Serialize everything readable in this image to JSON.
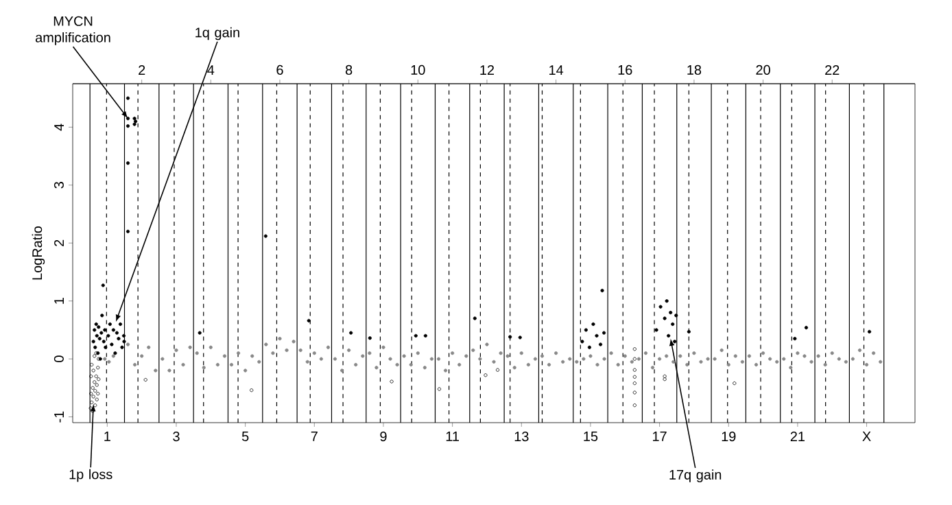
{
  "chart_data": {
    "type": "scatter",
    "ylabel": "LogRatio",
    "marker": "circle",
    "xlim": [
      0,
      24.4
    ],
    "ylim": [
      -1.1,
      4.75
    ],
    "yticks": [
      -1,
      0,
      1,
      2,
      3,
      4
    ],
    "xticks": [
      1,
      3,
      5,
      7,
      9,
      11,
      13,
      15,
      17,
      19,
      21,
      {
        "value": 23,
        "label": "X"
      }
    ],
    "x2lim": [
      0,
      24.4
    ],
    "x2ticks": [
      2,
      4,
      6,
      8,
      10,
      12,
      14,
      16,
      18,
      20,
      22
    ],
    "series": [
      {
        "color": "#888888",
        "x": [
          0.93,
          1.05,
          1.18,
          1.6,
          1.8,
          2,
          2.2,
          2.4,
          2.6,
          2.8,
          3,
          3.2,
          3.4,
          3.6,
          3.8,
          4,
          4.2,
          4.4,
          4.6,
          4.8,
          5,
          5.2,
          5.4,
          5.6,
          5.8,
          6,
          6.2,
          6.4,
          6.6,
          6.8,
          7,
          7.2,
          7.4,
          7.6,
          7.8,
          8,
          8.2,
          8.4,
          8.6,
          8.8,
          9,
          9.2,
          9.4,
          9.6,
          9.8,
          10,
          10.2,
          10.4,
          10.6,
          10.8,
          11,
          11.2,
          11.4,
          11.6,
          11.8,
          12,
          12.2,
          12.4,
          12.6,
          12.8,
          13,
          13.2,
          13.4,
          13.6,
          13.8,
          14,
          14.2,
          14.4,
          14.6,
          14.8,
          15,
          15.2,
          15.4,
          15.6,
          15.8,
          16,
          16.2,
          16.4,
          16.6,
          16.8,
          17,
          17.2,
          17.4,
          17.6,
          17.8,
          18,
          18.2,
          18.4,
          18.6,
          18.8,
          19,
          19.2,
          19.4,
          19.6,
          19.8,
          20,
          20.2,
          20.4,
          20.6,
          20.8,
          21,
          21.2,
          21.4,
          21.6,
          21.8,
          22,
          22.2,
          22.4,
          22.6,
          22.8,
          23,
          23.2,
          23.4
        ],
        "values": [
          0.0,
          -0.05,
          0.05,
          0.25,
          -0.1,
          0.05,
          0.2,
          -0.2,
          0.0,
          -0.2,
          0.15,
          -0.1,
          0.2,
          0.1,
          -0.15,
          0.2,
          -0.1,
          0.05,
          -0.1,
          0.1,
          -0.2,
          0.05,
          -0.05,
          0.25,
          0.1,
          0.35,
          0.15,
          0.3,
          0.15,
          -0.05,
          0.1,
          0.0,
          0.2,
          0.0,
          -0.2,
          0.15,
          -0.1,
          0.05,
          0.1,
          -0.15,
          0.2,
          0.0,
          -0.1,
          0.05,
          -0.1,
          0.1,
          -0.15,
          0.0,
          0.0,
          -0.2,
          0.1,
          -0.1,
          0.05,
          0.15,
          0.0,
          0.25,
          -0.05,
          0.1,
          0.05,
          -0.15,
          0.1,
          -0.1,
          0.0,
          0.05,
          -0.1,
          0.1,
          -0.05,
          0.0,
          -0.05,
          0.0,
          0.05,
          -0.1,
          0.0,
          0.1,
          -0.1,
          0.05,
          -0.05,
          0.0,
          0.1,
          -0.15,
          0.0,
          0.05,
          -0.05,
          0.05,
          -0.1,
          0.1,
          -0.05,
          0.0,
          0.0,
          0.15,
          -0.1,
          0.05,
          -0.05,
          0.05,
          -0.1,
          0.1,
          0.0,
          -0.05,
          0.0,
          -0.15,
          0.1,
          0.05,
          -0.05,
          0.05,
          -0.1,
          0.1,
          0.0,
          -0.05,
          0.0,
          0.15,
          -0.1,
          0.1,
          -0.05
        ]
      },
      {
        "color": "#000000",
        "x": [
          0.6,
          0.63,
          0.65,
          0.68,
          0.7,
          0.73,
          0.75,
          0.78,
          0.8,
          0.83,
          0.85,
          0.88,
          0.9,
          0.93,
          0.95,
          1.03,
          1.08,
          1.13,
          1.18,
          1.23,
          1.28,
          1.33,
          1.38,
          1.43,
          1.48,
          1.49,
          1.6,
          1.6,
          1.6,
          1.6,
          1.6,
          1.79,
          1.82,
          1.79,
          3.68,
          5.59,
          6.84,
          8.06,
          8.61,
          9.94,
          10.22,
          11.65,
          12.67,
          12.96,
          14.76,
          14.87,
          14.97,
          15.08,
          15.18,
          15.29,
          15.39,
          15.34,
          16.91,
          17.03,
          17.15,
          17.21,
          17.26,
          17.32,
          17.38,
          17.44,
          17.48,
          17.85,
          21.25,
          20.92,
          23.08
        ],
        "values": [
          0.3,
          0.5,
          0.2,
          0.6,
          0.4,
          0.1,
          0.55,
          0.35,
          0.0,
          0.45,
          0.75,
          1.27,
          0.3,
          0.5,
          0.2,
          0.4,
          0.6,
          0.25,
          0.5,
          0.1,
          0.45,
          0.35,
          0.6,
          0.2,
          0.4,
          0.3,
          4.5,
          4.15,
          4.02,
          3.38,
          2.2,
          4.15,
          4.1,
          4.05,
          0.45,
          2.12,
          0.66,
          0.45,
          0.36,
          0.4,
          0.4,
          0.7,
          0.38,
          0.37,
          0.3,
          0.5,
          0.2,
          0.6,
          0.4,
          0.25,
          0.45,
          1.18,
          0.5,
          0.9,
          0.7,
          1.0,
          0.4,
          0.8,
          0.6,
          0.3,
          0.75,
          0.47,
          0.54,
          0.35,
          0.47
        ]
      },
      {
        "color": "#000000",
        "x": [
          0.52,
          0.53,
          0.53,
          0.55,
          0.55,
          0.58,
          0.58,
          0.6,
          0.6,
          0.63,
          0.63,
          0.65,
          0.65,
          0.68,
          0.68,
          0.7,
          0.7,
          0.73,
          0.73,
          0.75,
          0.75,
          2.11,
          5.18,
          9.24,
          10.62,
          11.96,
          12.31,
          16.28,
          16.28,
          16.28,
          16.28,
          16.28,
          16.28,
          16.28,
          17.15,
          17.15,
          19.17
        ],
        "values": [
          -0.85,
          -0.6,
          -0.3,
          -0.75,
          -0.1,
          -0.5,
          -0.9,
          -0.2,
          -0.65,
          -0.4,
          0.05,
          -0.8,
          -0.55,
          -0.3,
          0.1,
          -0.7,
          -0.45,
          -0.15,
          -0.6,
          -0.35,
          0.0,
          -0.36,
          -0.54,
          -0.39,
          -0.52,
          -0.28,
          -0.19,
          0.17,
          0.0,
          -0.19,
          -0.31,
          -0.42,
          -0.58,
          -0.8,
          -0.3,
          -0.35,
          -0.42
        ]
      }
    ],
    "ref_lines": [
      {
        "axis": "x",
        "value": 0.5,
        "line_style": "solid"
      },
      {
        "axis": "x",
        "value": 1.5,
        "line_style": "solid"
      },
      {
        "axis": "x",
        "value": 2.5,
        "line_style": "solid"
      },
      {
        "axis": "x",
        "value": 3.5,
        "line_style": "solid"
      },
      {
        "axis": "x",
        "value": 4.5,
        "line_style": "solid"
      },
      {
        "axis": "x",
        "value": 5.5,
        "line_style": "solid"
      },
      {
        "axis": "x",
        "value": 6.5,
        "line_style": "solid"
      },
      {
        "axis": "x",
        "value": 7.5,
        "line_style": "solid"
      },
      {
        "axis": "x",
        "value": 8.5,
        "line_style": "solid"
      },
      {
        "axis": "x",
        "value": 9.5,
        "line_style": "solid"
      },
      {
        "axis": "x",
        "value": 10.5,
        "line_style": "solid"
      },
      {
        "axis": "x",
        "value": 11.5,
        "line_style": "solid"
      },
      {
        "axis": "x",
        "value": 12.5,
        "line_style": "solid"
      },
      {
        "axis": "x",
        "value": 13.5,
        "line_style": "solid"
      },
      {
        "axis": "x",
        "value": 14.5,
        "line_style": "solid"
      },
      {
        "axis": "x",
        "value": 15.5,
        "line_style": "solid"
      },
      {
        "axis": "x",
        "value": 16.5,
        "line_style": "solid"
      },
      {
        "axis": "x",
        "value": 17.5,
        "line_style": "solid"
      },
      {
        "axis": "x",
        "value": 18.5,
        "line_style": "solid"
      },
      {
        "axis": "x",
        "value": 19.5,
        "line_style": "solid"
      },
      {
        "axis": "x",
        "value": 20.5,
        "line_style": "solid"
      },
      {
        "axis": "x",
        "value": 21.5,
        "line_style": "solid"
      },
      {
        "axis": "x",
        "value": 22.5,
        "line_style": "solid"
      },
      {
        "axis": "x",
        "value": 23.5,
        "line_style": "solid"
      },
      {
        "axis": "x",
        "value": 0.98,
        "line_style": "dashed"
      },
      {
        "axis": "x",
        "value": 1.89,
        "line_style": "dashed"
      },
      {
        "axis": "x",
        "value": 2.94,
        "line_style": "dashed"
      },
      {
        "axis": "x",
        "value": 3.79,
        "line_style": "dashed"
      },
      {
        "axis": "x",
        "value": 4.79,
        "line_style": "dashed"
      },
      {
        "axis": "x",
        "value": 5.91,
        "line_style": "dashed"
      },
      {
        "axis": "x",
        "value": 6.88,
        "line_style": "dashed"
      },
      {
        "axis": "x",
        "value": 7.83,
        "line_style": "dashed"
      },
      {
        "axis": "x",
        "value": 8.91,
        "line_style": "dashed"
      },
      {
        "axis": "x",
        "value": 9.82,
        "line_style": "dashed"
      },
      {
        "axis": "x",
        "value": 10.9,
        "line_style": "dashed"
      },
      {
        "axis": "x",
        "value": 11.81,
        "line_style": "dashed"
      },
      {
        "axis": "x",
        "value": 12.67,
        "line_style": "dashed"
      },
      {
        "axis": "x",
        "value": 13.6,
        "line_style": "dashed"
      },
      {
        "axis": "x",
        "value": 14.71,
        "line_style": "dashed"
      },
      {
        "axis": "x",
        "value": 15.94,
        "line_style": "dashed"
      },
      {
        "axis": "x",
        "value": 16.85,
        "line_style": "dashed"
      },
      {
        "axis": "x",
        "value": 17.85,
        "line_style": "dashed"
      },
      {
        "axis": "x",
        "value": 18.97,
        "line_style": "dashed"
      },
      {
        "axis": "x",
        "value": 19.93,
        "line_style": "dashed"
      },
      {
        "axis": "x",
        "value": 20.83,
        "line_style": "dashed"
      },
      {
        "axis": "x",
        "value": 21.81,
        "line_style": "dashed"
      },
      {
        "axis": "x",
        "value": 22.92,
        "line_style": "dashed"
      }
    ],
    "annotations": [
      {
        "text": "MYCN amplification",
        "x": 1.6,
        "y": 4.15
      },
      {
        "text": "1q gain",
        "x": 1.25,
        "y": 0.64
      },
      {
        "text": "1p loss",
        "x": 0.6,
        "y": -0.78
      },
      {
        "text": "17q gain",
        "x": 17.32,
        "y": 0.35
      }
    ]
  }
}
